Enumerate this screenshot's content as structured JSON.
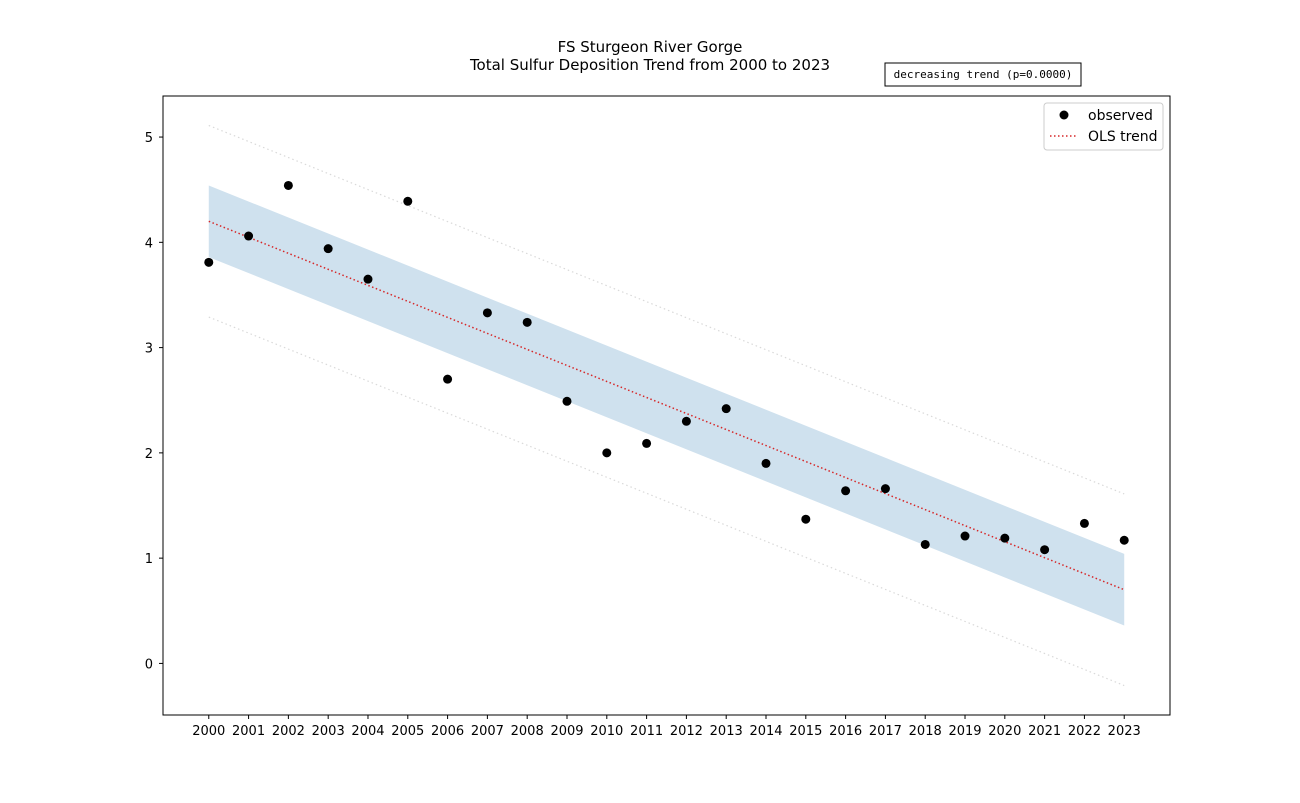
{
  "chart_data": {
    "type": "scatter",
    "title_line1": "FS Sturgeon River Gorge",
    "title_line2": "Total Sulfur Deposition Trend from 2000 to 2023",
    "annotation": "decreasing trend (p=0.0000)",
    "xlabel": "",
    "ylabel": "",
    "x": [
      2000,
      2001,
      2002,
      2003,
      2004,
      2005,
      2006,
      2007,
      2008,
      2009,
      2010,
      2011,
      2012,
      2013,
      2014,
      2015,
      2016,
      2017,
      2018,
      2019,
      2020,
      2021,
      2022,
      2023
    ],
    "x_tick_labels": [
      "2000",
      "2001",
      "2002",
      "2003",
      "2004",
      "2005",
      "2006",
      "2007",
      "2008",
      "2009",
      "2010",
      "2011",
      "2012",
      "2013",
      "2014",
      "2015",
      "2016",
      "2017",
      "2018",
      "2019",
      "2020",
      "2021",
      "2022",
      "2023"
    ],
    "y_ticks": [
      0,
      1,
      2,
      3,
      4,
      5
    ],
    "y_tick_labels": [
      "0",
      "1",
      "2",
      "3",
      "4",
      "5"
    ],
    "xlim": [
      1998.85,
      2024.15
    ],
    "ylim": [
      -0.49,
      5.39
    ],
    "series": [
      {
        "name": "observed",
        "type": "scatter",
        "color": "#000000",
        "values": [
          3.81,
          4.06,
          4.54,
          3.94,
          3.65,
          4.39,
          2.7,
          3.33,
          3.24,
          2.49,
          2.0,
          2.09,
          2.3,
          2.42,
          1.9,
          1.37,
          1.64,
          1.66,
          1.13,
          1.21,
          1.19,
          1.08,
          1.33,
          1.17
        ]
      },
      {
        "name": "OLS trend",
        "type": "line",
        "style": "dotted",
        "color": "#d62728",
        "start": [
          2000,
          4.2
        ],
        "end": [
          2023,
          0.7
        ]
      }
    ],
    "confidence_band": {
      "color": "#cfe1ee",
      "upper_start": 4.54,
      "upper_end": 1.04,
      "lower_start": 3.86,
      "lower_end": 0.36
    },
    "prediction_band": {
      "color": "#d9d9d9",
      "style": "dotted",
      "upper_start": 5.11,
      "upper_end": 1.61,
      "lower_start": 3.29,
      "lower_end": -0.21
    },
    "legend": {
      "placement": "top-right",
      "entries": [
        "observed",
        "OLS trend"
      ]
    },
    "grid": false
  }
}
